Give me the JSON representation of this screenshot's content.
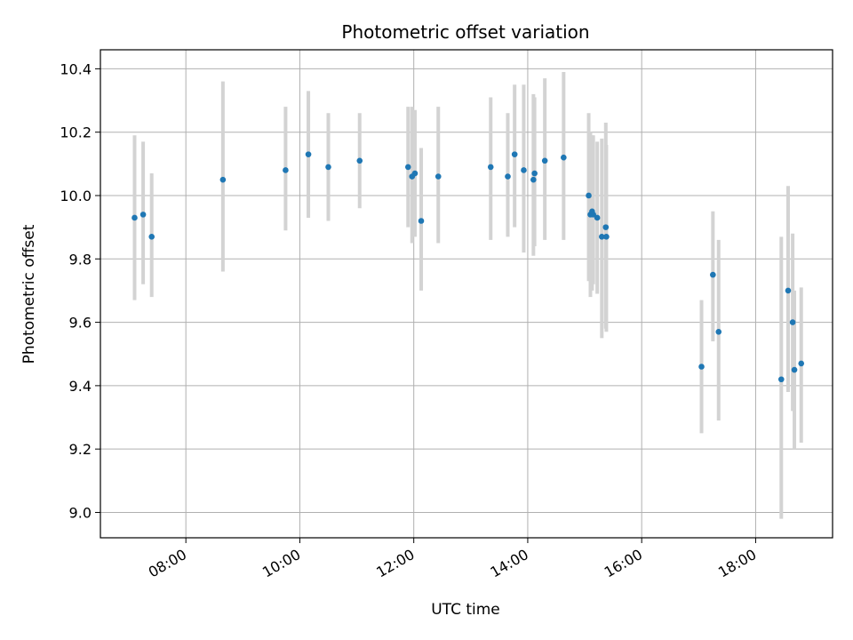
{
  "chart_data": {
    "type": "scatter",
    "title": "Photometric offset variation",
    "xlabel": "UTC time",
    "ylabel": "Photometric offset",
    "x_unit": "hours UTC",
    "xlim": [
      6.5,
      19.35
    ],
    "ylim": [
      8.92,
      10.46
    ],
    "xticks": [
      8,
      10,
      12,
      14,
      16,
      18
    ],
    "xtick_labels": [
      "08:00",
      "10:00",
      "12:00",
      "14:00",
      "16:00",
      "18:00"
    ],
    "yticks": [
      9.0,
      9.2,
      9.4,
      9.6,
      9.8,
      10.0,
      10.2,
      10.4
    ],
    "ytick_labels": [
      "9.0",
      "9.2",
      "9.4",
      "9.6",
      "9.8",
      "10.0",
      "10.2",
      "10.4"
    ],
    "grid": true,
    "colors": {
      "points": "#1f77b4",
      "errorbars": "#d3d3d3",
      "grid": "#b0b0b0"
    },
    "x": [
      7.1,
      7.25,
      7.4,
      8.65,
      9.75,
      10.15,
      10.5,
      11.05,
      11.9,
      11.97,
      12.02,
      12.13,
      12.43,
      13.35,
      13.65,
      13.77,
      13.93,
      14.1,
      14.12,
      14.3,
      14.63,
      15.07,
      15.1,
      15.13,
      15.15,
      15.22,
      15.3,
      15.37,
      15.38,
      17.05,
      17.25,
      17.35,
      18.45,
      18.57,
      18.65,
      18.68,
      18.8
    ],
    "y": [
      9.93,
      9.94,
      9.87,
      10.05,
      10.08,
      10.13,
      10.09,
      10.11,
      10.09,
      10.06,
      10.07,
      9.92,
      10.06,
      10.09,
      10.06,
      10.13,
      10.08,
      10.05,
      10.07,
      10.11,
      10.12,
      10.0,
      9.94,
      9.95,
      9.94,
      9.93,
      9.87,
      9.9,
      9.87,
      9.46,
      9.75,
      9.57,
      9.42,
      9.7,
      9.6,
      9.45,
      9.47
    ],
    "yerr_low": [
      9.67,
      9.72,
      9.68,
      9.76,
      9.89,
      9.93,
      9.92,
      9.96,
      9.9,
      9.85,
      9.87,
      9.7,
      9.85,
      9.86,
      9.87,
      9.9,
      9.82,
      9.81,
      9.84,
      9.86,
      9.86,
      9.73,
      9.68,
      9.7,
      9.72,
      9.69,
      9.55,
      9.58,
      9.57,
      9.25,
      9.54,
      9.29,
      8.98,
      9.38,
      9.32,
      9.2,
      9.22
    ],
    "yerr_high": [
      10.19,
      10.17,
      10.07,
      10.36,
      10.28,
      10.33,
      10.26,
      10.26,
      10.28,
      10.28,
      10.27,
      10.15,
      10.28,
      10.31,
      10.26,
      10.35,
      10.35,
      10.32,
      10.31,
      10.37,
      10.39,
      10.26,
      10.2,
      10.19,
      10.19,
      10.17,
      10.18,
      10.23,
      10.16,
      9.67,
      9.95,
      9.86,
      9.87,
      10.03,
      9.88,
      9.7,
      9.71
    ]
  }
}
